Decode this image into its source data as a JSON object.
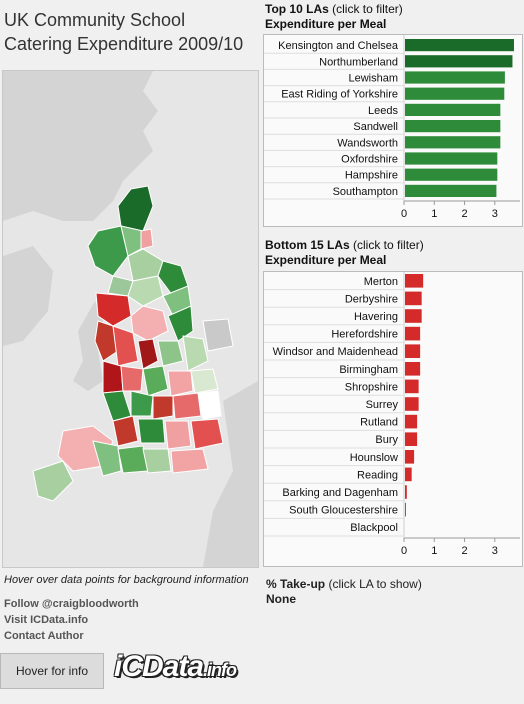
{
  "title_line1": "UK Community School",
  "title_line2": "Catering Expenditure 2009/10",
  "top": {
    "title_bold": "Top 10 LAs",
    "title_rest": " (click to filter)",
    "subtitle": "Expenditure per Meal"
  },
  "bottom": {
    "title_bold": "Bottom 15 LAs",
    "title_rest": " (click to filter)",
    "subtitle": "Expenditure per Meal"
  },
  "hint": "Hover over data points for background information",
  "links": {
    "follow": "Follow @craigbloodworth",
    "visit": "Visit ICData.info",
    "contact": "Contact Author"
  },
  "hover_button": "Hover for info",
  "logo": {
    "main": "iCData",
    "suffix": ".info"
  },
  "takeup": {
    "title_bold": "% Take-up",
    "title_rest": " (click LA to show)",
    "value": "None"
  },
  "colors": {
    "top_bars": "#2e8b3a",
    "top_bar_max": "#1a6b2a",
    "bottom_bars": "#d42a2a",
    "map_sea": "#e6e6e6"
  },
  "chart_data": [
    {
      "type": "bar",
      "orientation": "horizontal",
      "title": "Top 10 LAs",
      "categories": [
        "Kensington and Chelsea",
        "Northumberland",
        "Lewisham",
        "East Riding of Yorkshire",
        "Leeds",
        "Sandwell",
        "Wandsworth",
        "Oxfordshire",
        "Hampshire",
        "Southampton"
      ],
      "values": [
        3.6,
        3.55,
        3.3,
        3.28,
        3.15,
        3.15,
        3.15,
        3.05,
        3.05,
        3.02
      ],
      "xticks": [
        0,
        1,
        2,
        3
      ],
      "xlim": [
        0,
        3.7
      ]
    },
    {
      "type": "bar",
      "orientation": "horizontal",
      "title": "Bottom 15 LAs",
      "categories": [
        "Merton",
        "Derbyshire",
        "Havering",
        "Herefordshire",
        "Windsor and Maidenhead",
        "Birmingham",
        "Shropshire",
        "Surrey",
        "Rutland",
        "Bury",
        "Hounslow",
        "Reading",
        "Barking and Dagenham",
        "South Gloucestershire",
        "Blackpool"
      ],
      "values": [
        0.6,
        0.55,
        0.55,
        0.5,
        0.5,
        0.5,
        0.45,
        0.45,
        0.4,
        0.4,
        0.3,
        0.22,
        0.06,
        0.03,
        0.0
      ],
      "xticks": [
        0,
        1,
        2,
        3
      ],
      "xlim": [
        0,
        3.7
      ]
    }
  ]
}
